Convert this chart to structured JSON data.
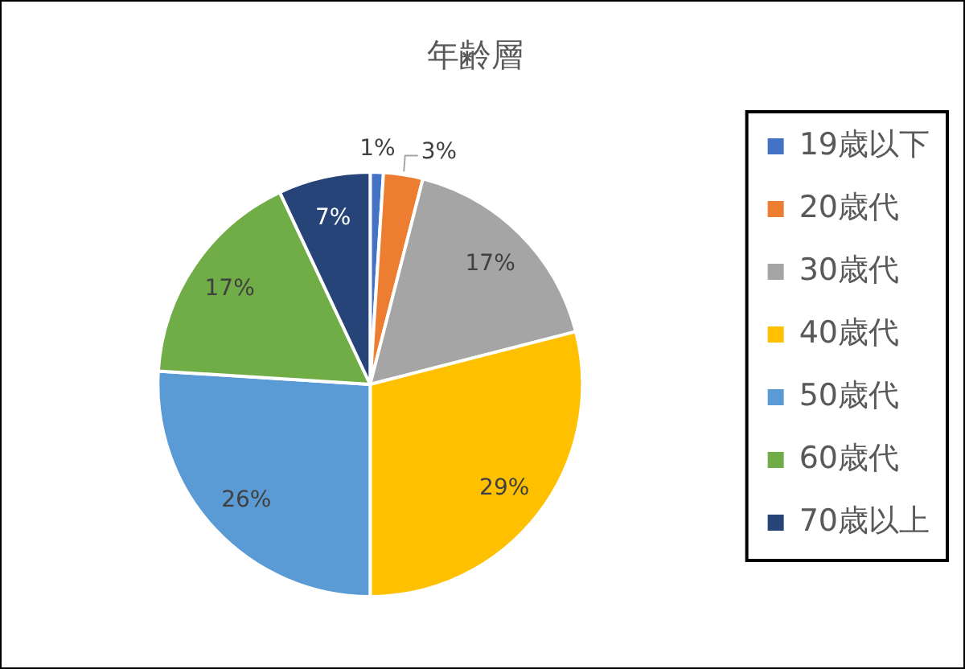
{
  "chart_data": {
    "type": "pie",
    "title": "年齢層",
    "categories": [
      "19歳以下",
      "20歳代",
      "30歳代",
      "40歳代",
      "50歳代",
      "60歳代",
      "70歳以上"
    ],
    "values": [
      1,
      3,
      17,
      29,
      26,
      17,
      7
    ],
    "colors": [
      "#4472c4",
      "#ed7d31",
      "#a5a5a5",
      "#ffc000",
      "#5b9bd5",
      "#70ad47",
      "#264478"
    ],
    "value_labels": [
      "1%",
      "3%",
      "17%",
      "29%",
      "26%",
      "17%",
      "7%"
    ],
    "legend": "right"
  }
}
